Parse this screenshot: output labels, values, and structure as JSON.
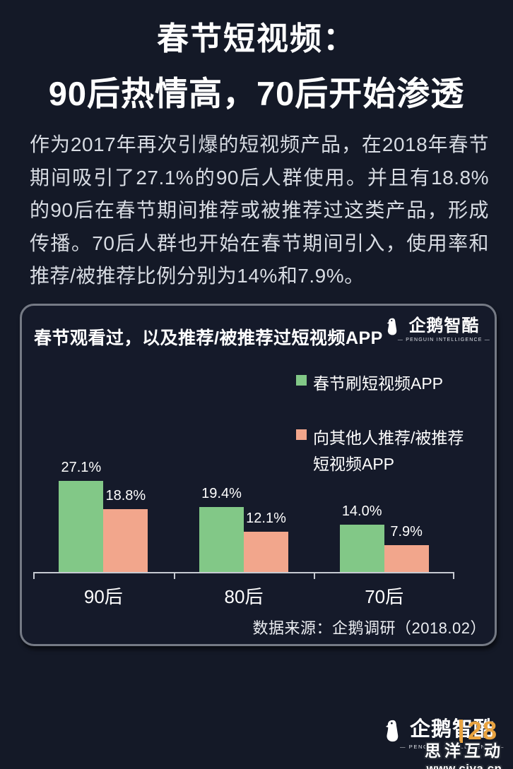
{
  "header": {
    "title_line1": "春节短视频：",
    "title_line2": "90后热情高，70后开始渗透",
    "intro": "作为2017年再次引爆的短视频产品，在2018年春节期间吸引了27.1%的90后人群使用。并且有18.8%的90后在春节期间推荐或被推荐过这类产品，形成传播。70后人群也开始在春节期间引入，使用率和推荐/被推荐比例分别为14%和7.9%。"
  },
  "card": {
    "title": "春节观看过，以及推荐/被推荐过短视频APP",
    "logo_name": "企鹅智酷",
    "logo_subtitle": "— PENGUIN INTELLIGENCE —",
    "source": "数据来源：企鹅调研（2018.02）"
  },
  "legend": {
    "item1": "春节刷短视频APP",
    "item2_line1": "向其他人推荐/被推荐",
    "item2_line2": "短视频APP"
  },
  "chart_data": {
    "type": "bar",
    "title": "春节观看过，以及推荐/被推荐过短视频APP",
    "categories": [
      "90后",
      "80后",
      "70后"
    ],
    "series": [
      {
        "name": "春节刷短视频APP",
        "color": "#82c887",
        "values": [
          27.1,
          19.4,
          14.0
        ],
        "labels": [
          "27.1%",
          "19.4%",
          "14.0%"
        ]
      },
      {
        "name": "向其他人推荐/被推荐短视频APP",
        "color": "#f2a68c",
        "values": [
          18.8,
          12.1,
          7.9
        ],
        "labels": [
          "18.8%",
          "12.1%",
          "7.9%"
        ]
      }
    ],
    "ylim": [
      0,
      32
    ],
    "grid": false,
    "legend_position": "upper-right",
    "source": "数据来源：企鹅调研（2018.02）"
  },
  "footer": {
    "logo_name": "企鹅智酷",
    "logo_subtitle": "— PENGUIN INTELLIGENCE —",
    "page_number": "28",
    "watermark_line1": "思洋互动",
    "watermark_line2": "www.ciya.cn"
  },
  "colors": {
    "background": "#141927",
    "card_border": "#757a85",
    "title_text": "#ffffff",
    "body_text": "#d8dce3",
    "series1_green": "#82c887",
    "series2_salmon": "#f2a68c",
    "axis_line": "#c6cad2",
    "page_number_orange": "#e9a340"
  }
}
